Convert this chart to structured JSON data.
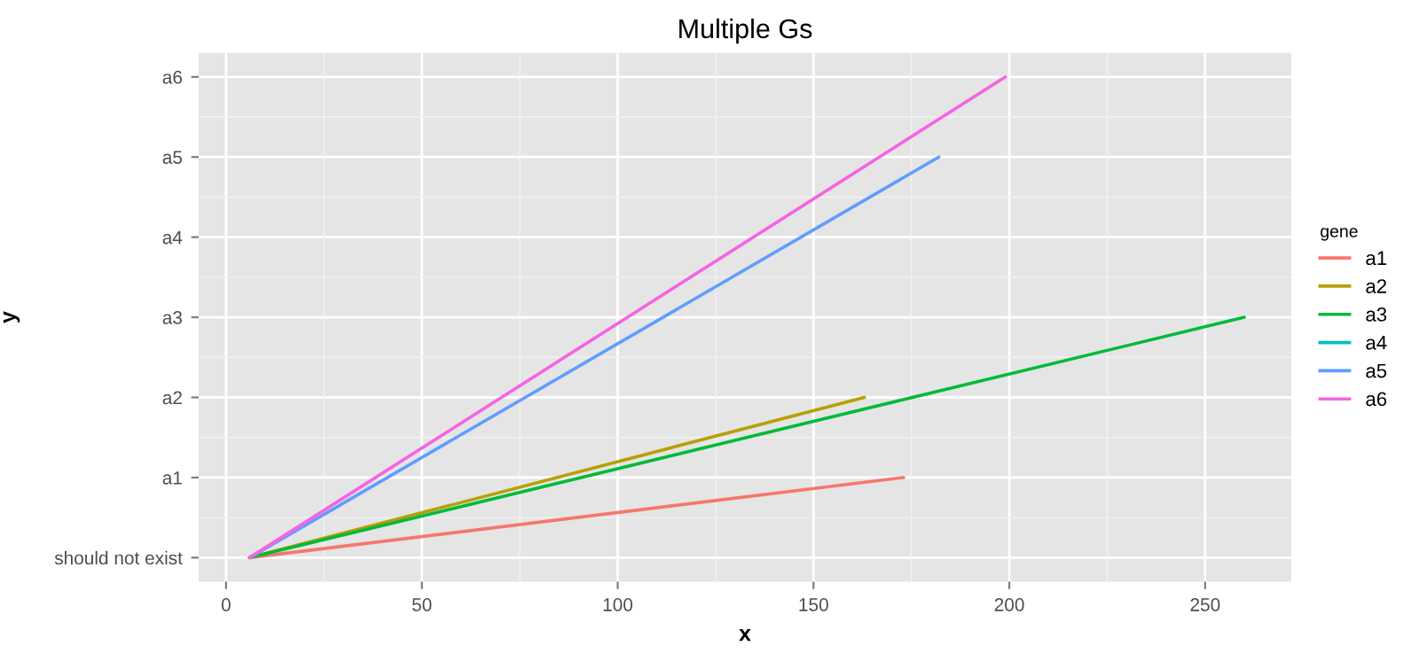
{
  "chart_data": {
    "type": "line",
    "orientation": "horizontal",
    "title": "Multiple Gs",
    "xlabel": "x",
    "ylabel": "y",
    "legend_title": "gene",
    "categories": [
      "a6",
      "a5",
      "a4",
      "a3",
      "a2",
      "a1",
      "should not exist"
    ],
    "xlim": [
      -7,
      272
    ],
    "xticks": [
      0,
      50,
      100,
      150,
      200,
      250
    ],
    "grid": true,
    "legend": "right",
    "line_style": "solid",
    "series": [
      {
        "name": "a1",
        "color": "#f8766d",
        "values": [
          null,
          null,
          null,
          null,
          null,
          173,
          6
        ]
      },
      {
        "name": "a2",
        "color": "#b79f00",
        "values": [
          null,
          null,
          null,
          null,
          163,
          null,
          6
        ]
      },
      {
        "name": "a3",
        "color": "#00ba38",
        "values": [
          null,
          null,
          null,
          260,
          null,
          null,
          6
        ]
      },
      {
        "name": "a4",
        "color": "#00bfc4",
        "values": [
          null,
          null,
          null,
          null,
          null,
          null,
          null
        ]
      },
      {
        "name": "a5",
        "color": "#619cff",
        "values": [
          null,
          182,
          null,
          null,
          null,
          null,
          6
        ]
      },
      {
        "name": "a6",
        "color": "#f564e3",
        "values": [
          199,
          null,
          null,
          null,
          null,
          null,
          6
        ]
      }
    ]
  }
}
